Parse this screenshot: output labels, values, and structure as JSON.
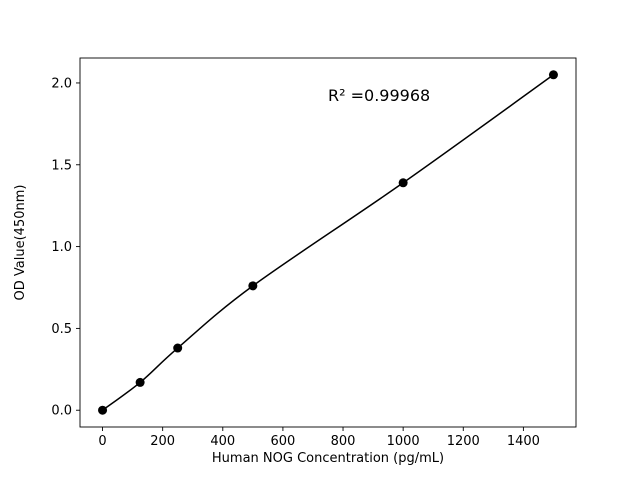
{
  "chart_data": {
    "type": "scatter",
    "title": "",
    "xlabel": "Human NOG Concentration (pg/mL)",
    "ylabel": "OD Value(450nm)",
    "annotation": {
      "text": "R² =0.99968",
      "x": 750,
      "y": 1.89
    },
    "points": {
      "x": [
        0,
        125,
        250,
        500,
        1000,
        1500
      ],
      "y": [
        0.0,
        0.17,
        0.38,
        0.76,
        1.39,
        2.05
      ]
    },
    "fit_line": {
      "style": "solid",
      "color": "#000000",
      "width": 1.5
    },
    "marker": {
      "shape": "circle",
      "color": "#000000",
      "radius": 4.5
    },
    "xticks": {
      "values": [
        0,
        200,
        400,
        600,
        800,
        1000,
        1200,
        1400
      ],
      "labels": [
        "0",
        "200",
        "400",
        "600",
        "800",
        "1000",
        "1200",
        "1400"
      ]
    },
    "yticks": {
      "values": [
        0.0,
        0.5,
        1.0,
        1.5,
        2.0
      ],
      "labels": [
        "0.0",
        "0.5",
        "1.0",
        "1.5",
        "2.0"
      ]
    },
    "xlim": [
      -75,
      1575
    ],
    "ylim": [
      -0.1025,
      2.1525
    ],
    "grid": false,
    "axes_box": true,
    "background_color": "#ffffff",
    "axis_color": "#000000"
  }
}
